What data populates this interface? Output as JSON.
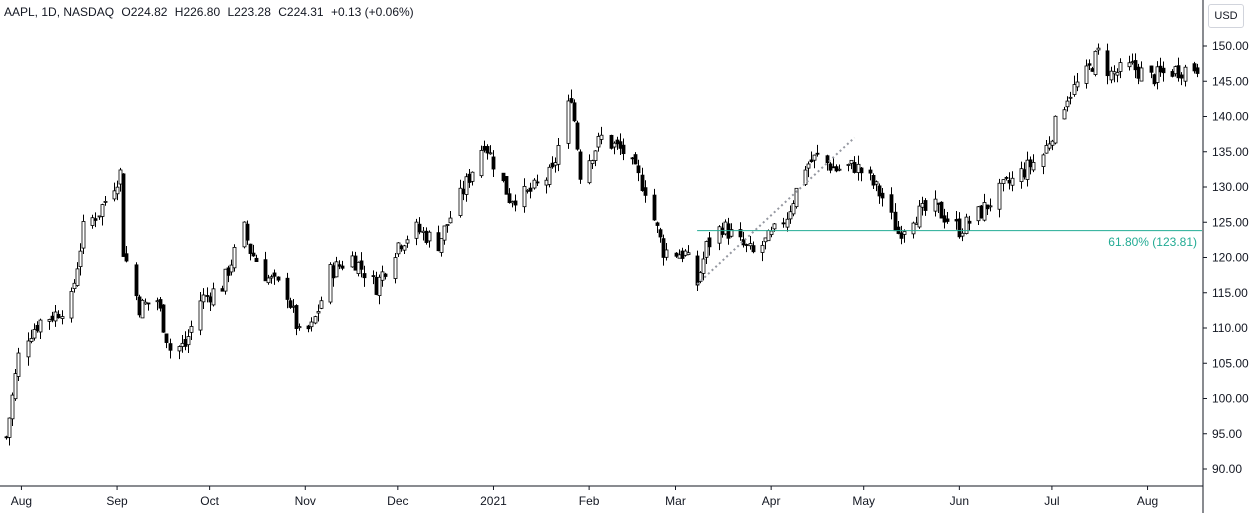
{
  "legend": {
    "symbol": "AAPL, 1D, NASDAQ",
    "open": "O224.82",
    "high": "H226.80",
    "low": "L223.28",
    "close": "C224.31",
    "change": "+0.13 (+0.06%)"
  },
  "currency": "USD",
  "colors": {
    "fib": "#22ab94",
    "candle": "#000000",
    "axis": "#131722",
    "bg": "#ffffff"
  },
  "chart_data": {
    "type": "candlestick",
    "title": "",
    "xlabel": "",
    "ylabel": "",
    "ylim": [
      88,
      152
    ],
    "y_ticks": [
      "150.00",
      "145.00",
      "140.00",
      "135.00",
      "130.00",
      "125.00",
      "120.00",
      "115.00",
      "110.00",
      "105.00",
      "100.00",
      "95.00",
      "90.00"
    ],
    "x_ticks": [
      {
        "label": "Aug",
        "date": "2020-08-01"
      },
      {
        "label": "Sep",
        "date": "2020-09-01"
      },
      {
        "label": "Oct",
        "date": "2020-10-01"
      },
      {
        "label": "Nov",
        "date": "2020-11-01"
      },
      {
        "label": "Dec",
        "date": "2020-12-01"
      },
      {
        "label": "2021",
        "date": "2021-01-01"
      },
      {
        "label": "Feb",
        "date": "2021-02-01"
      },
      {
        "label": "Mar",
        "date": "2021-03-01"
      },
      {
        "label": "Apr",
        "date": "2021-04-01"
      },
      {
        "label": "May",
        "date": "2021-05-01"
      },
      {
        "label": "Jun",
        "date": "2021-06-01"
      },
      {
        "label": "Jul",
        "date": "2021-07-01"
      },
      {
        "label": "Aug",
        "date": "2021-08-01"
      }
    ],
    "x_range": [
      "2020-07-27",
      "2021-08-18"
    ],
    "fib_level": {
      "price": 123.81,
      "label": "61.80% (123.81)",
      "start_date": "2021-03-08"
    },
    "trend_line": {
      "from": {
        "date": "2021-03-08",
        "price": 116.2
      },
      "to": {
        "date": "2021-04-28",
        "price": 137.0
      }
    },
    "anchors": [
      [
        "2020-07-27",
        94.5
      ],
      [
        "2020-07-31",
        106
      ],
      [
        "2020-08-03",
        109
      ],
      [
        "2020-08-07",
        111
      ],
      [
        "2020-08-12",
        112
      ],
      [
        "2020-08-17",
        114
      ],
      [
        "2020-08-21",
        124
      ],
      [
        "2020-08-26",
        126.5
      ],
      [
        "2020-09-02",
        132
      ],
      [
        "2020-09-03",
        121
      ],
      [
        "2020-09-08",
        113
      ],
      [
        "2020-09-14",
        114
      ],
      [
        "2020-09-18",
        107
      ],
      [
        "2020-09-23",
        107.5
      ],
      [
        "2020-09-28",
        114
      ],
      [
        "2020-10-05",
        116
      ],
      [
        "2020-10-12",
        124
      ],
      [
        "2020-10-14",
        121
      ],
      [
        "2020-10-20",
        117
      ],
      [
        "2020-10-26",
        115
      ],
      [
        "2020-10-30",
        109
      ],
      [
        "2020-11-03",
        110
      ],
      [
        "2020-11-09",
        118
      ],
      [
        "2020-11-16",
        120
      ],
      [
        "2020-11-24",
        116
      ],
      [
        "2020-12-01",
        122
      ],
      [
        "2020-12-07",
        124
      ],
      [
        "2020-12-14",
        122
      ],
      [
        "2020-12-23",
        130.5
      ],
      [
        "2020-12-29",
        136.5
      ],
      [
        "2021-01-06",
        128.5
      ],
      [
        "2021-01-12",
        129
      ],
      [
        "2021-01-20",
        132
      ],
      [
        "2021-01-26",
        143.2
      ],
      [
        "2021-01-29",
        132
      ],
      [
        "2021-02-05",
        137
      ],
      [
        "2021-02-12",
        135
      ],
      [
        "2021-02-19",
        129.8
      ],
      [
        "2021-02-25",
        121
      ],
      [
        "2021-03-04",
        120.5
      ],
      [
        "2021-03-08",
        116.3
      ],
      [
        "2021-03-11",
        121.5
      ],
      [
        "2021-03-16",
        124.5
      ],
      [
        "2021-03-22",
        122
      ],
      [
        "2021-03-26",
        120.5
      ],
      [
        "2021-04-01",
        123
      ],
      [
        "2021-04-06",
        126
      ],
      [
        "2021-04-12",
        133
      ],
      [
        "2021-04-16",
        134.3
      ],
      [
        "2021-04-22",
        132.5
      ],
      [
        "2021-04-28",
        133
      ],
      [
        "2021-05-03",
        131
      ],
      [
        "2021-05-07",
        128.5
      ],
      [
        "2021-05-12",
        123.5
      ],
      [
        "2021-05-17",
        126
      ],
      [
        "2021-05-24",
        127
      ],
      [
        "2021-06-01",
        124
      ],
      [
        "2021-06-08",
        126.5
      ],
      [
        "2021-06-15",
        129.8
      ],
      [
        "2021-06-21",
        132
      ],
      [
        "2021-06-28",
        134.6
      ],
      [
        "2021-07-06",
        143
      ],
      [
        "2021-07-12",
        146
      ],
      [
        "2021-07-16",
        149
      ],
      [
        "2021-07-20",
        146
      ],
      [
        "2021-07-27",
        147
      ],
      [
        "2021-08-02",
        145.5
      ],
      [
        "2021-08-09",
        146.5
      ],
      [
        "2021-08-17",
        147
      ]
    ]
  }
}
